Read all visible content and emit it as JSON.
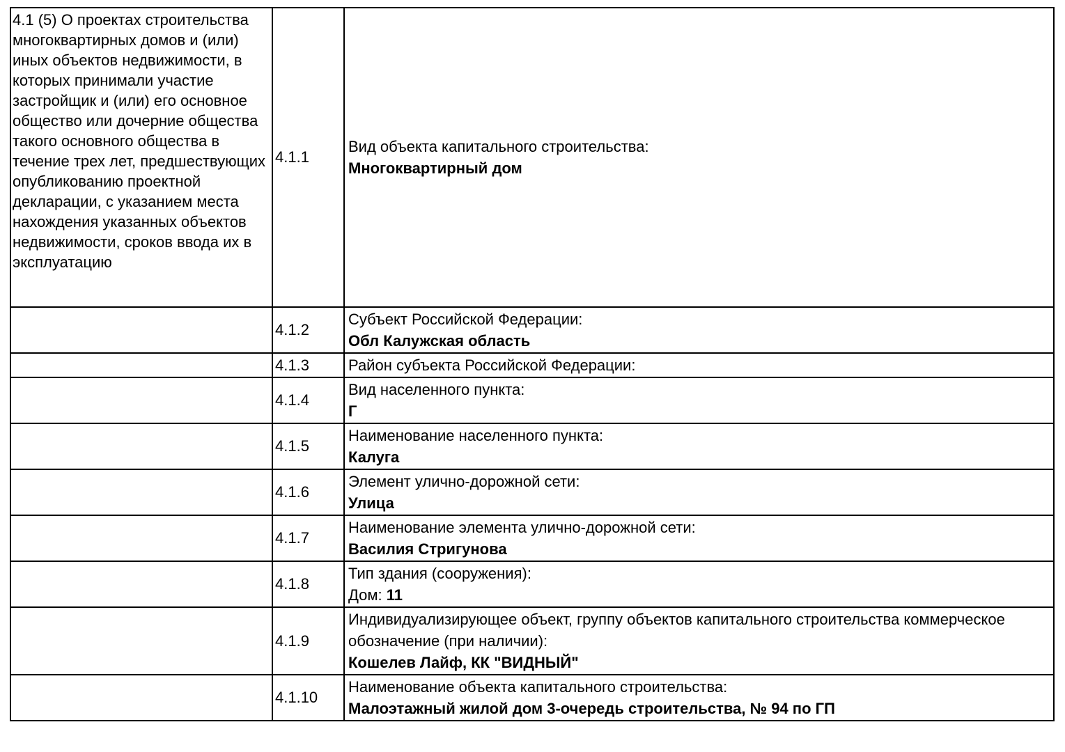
{
  "table": {
    "section_label": "4.1 (5) О проектах строительства многоквартирных домов и (или) иных объектов недвижимости, в которых принимали участие застройщик и (или) его основное общество или дочерние общества такого основного общества в течение трех лет, предшествующих опубликованию проектной декларации, с указанием места нахождения указанных объектов недвижимости, сроков ввода их в эксплуатацию",
    "rows": [
      {
        "num": "4.1.1",
        "label": "Вид объекта капитального строительства:",
        "value_prefix": "",
        "value": "Многоквартирный дом"
      },
      {
        "num": "4.1.2",
        "label": "Субъект Российской Федерации:",
        "value_prefix": "",
        "value": "Обл Калужская область"
      },
      {
        "num": "4.1.3",
        "label": "Район субъекта Российской Федерации:",
        "value_prefix": "",
        "value": ""
      },
      {
        "num": "4.1.4",
        "label": "Вид населенного пункта:",
        "value_prefix": "",
        "value": "Г"
      },
      {
        "num": "4.1.5",
        "label": "Наименование населенного пункта:",
        "value_prefix": "",
        "value": "Калуга"
      },
      {
        "num": "4.1.6",
        "label": "Элемент улично-дорожной сети:",
        "value_prefix": "",
        "value": "Улица"
      },
      {
        "num": "4.1.7",
        "label": "Наименование элемента улично-дорожной сети:",
        "value_prefix": "",
        "value": "Василия Стригунова"
      },
      {
        "num": "4.1.8",
        "label": "Тип здания (сооружения):",
        "value_prefix": "Дом: ",
        "value": "11"
      },
      {
        "num": "4.1.9",
        "label": "Индивидуализирующее объект, группу объектов капитального строительства коммерческое обозначение (при наличии):",
        "value_prefix": "",
        "value": "Кошелев Лайф, КК \"ВИДНЫЙ\""
      },
      {
        "num": "4.1.10",
        "label": "Наименование объекта капитального строительства:",
        "value_prefix": "",
        "value": "Малоэтажный жилой дом 3-очередь строительства, № 94 по ГП"
      }
    ]
  }
}
